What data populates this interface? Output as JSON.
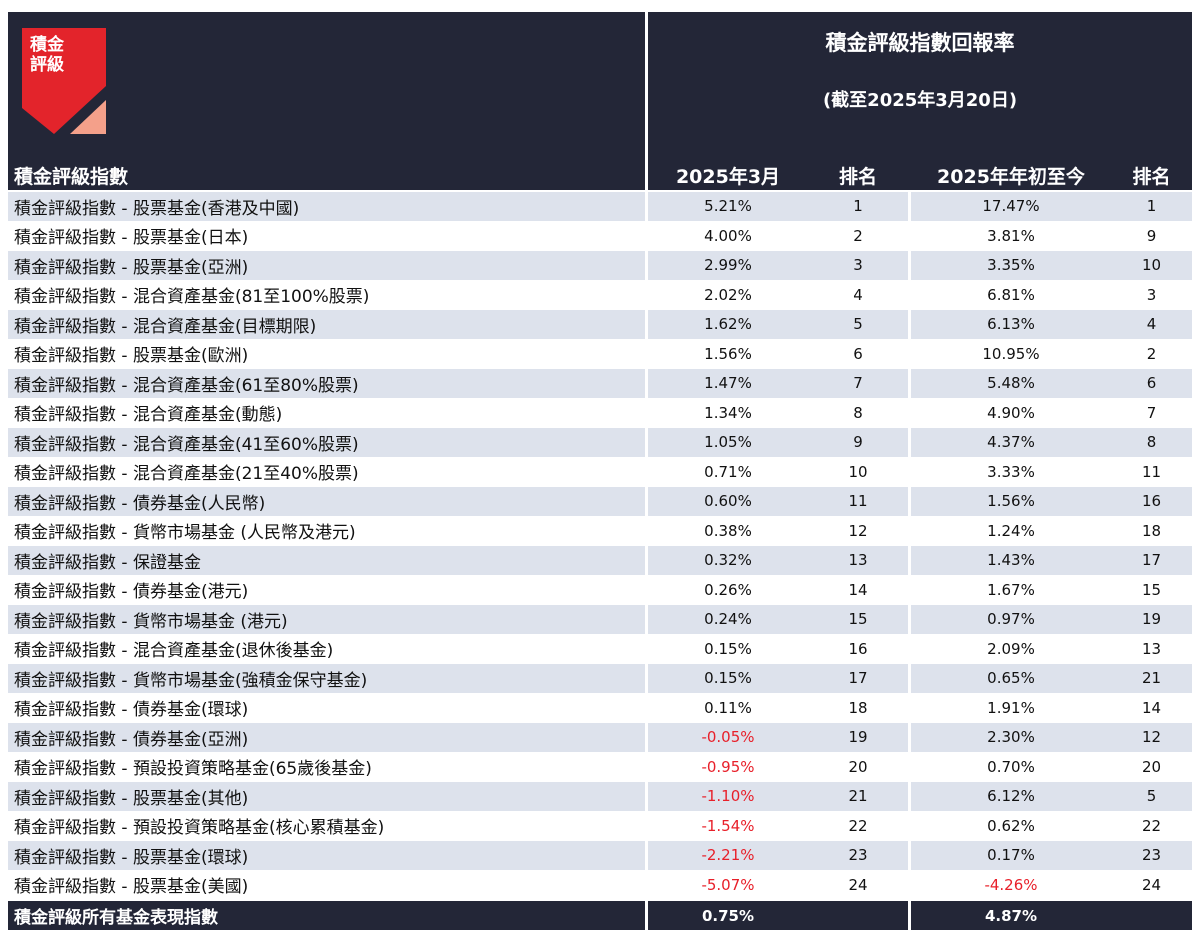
{
  "logo": [
    "積金",
    "評級"
  ],
  "header": {
    "title": "積金評級指數回報率",
    "subtitle": "(截至2025年3月20日)"
  },
  "table": {
    "columns": [
      "積金評級指數",
      "2025年3月",
      "排名",
      "2025年年初至今",
      "排名"
    ],
    "rows": [
      [
        "積金評級指數 - 股票基金(香港及中國)",
        "5.21%",
        "1",
        "17.47%",
        "1"
      ],
      [
        "積金評級指數 - 股票基金(日本)",
        "4.00%",
        "2",
        "3.81%",
        "9"
      ],
      [
        "積金評級指數 - 股票基金(亞洲)",
        "2.99%",
        "3",
        "3.35%",
        "10"
      ],
      [
        "積金評級指數 - 混合資產基金(81至100%股票)",
        "2.02%",
        "4",
        "6.81%",
        "3"
      ],
      [
        "積金評級指數 - 混合資產基金(目標期限)",
        "1.62%",
        "5",
        "6.13%",
        "4"
      ],
      [
        "積金評級指數 - 股票基金(歐洲)",
        "1.56%",
        "6",
        "10.95%",
        "2"
      ],
      [
        "積金評級指數 - 混合資產基金(61至80%股票)",
        "1.47%",
        "7",
        "5.48%",
        "6"
      ],
      [
        "積金評級指數 - 混合資產基金(動態)",
        "1.34%",
        "8",
        "4.90%",
        "7"
      ],
      [
        "積金評級指數 - 混合資產基金(41至60%股票)",
        "1.05%",
        "9",
        "4.37%",
        "8"
      ],
      [
        "積金評級指數 - 混合資產基金(21至40%股票)",
        "0.71%",
        "10",
        "3.33%",
        "11"
      ],
      [
        "積金評級指數 - 債券基金(人民幣)",
        "0.60%",
        "11",
        "1.56%",
        "16"
      ],
      [
        "積金評級指數 - 貨幣市場基金 (人民幣及港元)",
        "0.38%",
        "12",
        "1.24%",
        "18"
      ],
      [
        "積金評級指數 - 保證基金",
        "0.32%",
        "13",
        "1.43%",
        "17"
      ],
      [
        "積金評級指數 - 債券基金(港元)",
        "0.26%",
        "14",
        "1.67%",
        "15"
      ],
      [
        "積金評級指數 - 貨幣市場基金 (港元)",
        "0.24%",
        "15",
        "0.97%",
        "19"
      ],
      [
        "積金評級指數 - 混合資產基金(退休後基金)",
        "0.15%",
        "16",
        "2.09%",
        "13"
      ],
      [
        "積金評級指數 - 貨幣市場基金(強積金保守基金)",
        "0.15%",
        "17",
        "0.65%",
        "21"
      ],
      [
        "積金評級指數 - 債券基金(環球)",
        "0.11%",
        "18",
        "1.91%",
        "14"
      ],
      [
        "積金評級指數 - 債券基金(亞洲)",
        "-0.05%",
        "19",
        "2.30%",
        "12"
      ],
      [
        "積金評級指數 - 預設投資策略基金(65歲後基金)",
        "-0.95%",
        "20",
        "0.70%",
        "20"
      ],
      [
        "積金評級指數 - 股票基金(其他)",
        "-1.10%",
        "21",
        "6.12%",
        "5"
      ],
      [
        "積金評級指數 - 預設投資策略基金(核心累積基金)",
        "-1.54%",
        "22",
        "0.62%",
        "22"
      ],
      [
        "積金評級指數 - 股票基金(環球)",
        "-2.21%",
        "23",
        "0.17%",
        "23"
      ],
      [
        "積金評級指數 - 股票基金(美國)",
        "-5.07%",
        "24",
        "-4.26%",
        "24"
      ]
    ],
    "footer": [
      "積金評級所有基金表現指數",
      "0.75%",
      "4.87%"
    ]
  }
}
